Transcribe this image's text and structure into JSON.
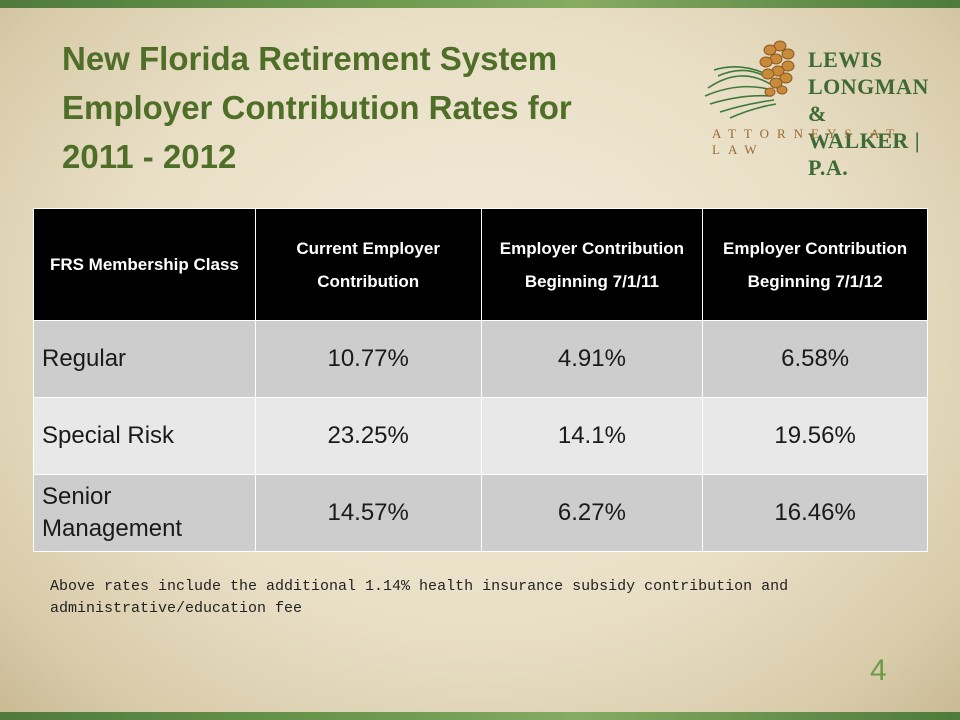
{
  "slide": {
    "title": "New Florida Retirement System Employer Contribution Rates for 2011 - 2012",
    "page_number": "4"
  },
  "logo": {
    "lines": [
      "LEWIS",
      "LONGMAN &",
      "WALKER | P.A."
    ],
    "tagline": "ATTORNEYS AT LAW",
    "colors": {
      "text": "#3d6a35",
      "tagline": "#9b6b2e",
      "cone": "#c98a3a"
    }
  },
  "table": {
    "headers": [
      "FRS Membership Class",
      "Current Employer Contribution",
      "Employer Contribution Beginning 7/1/11",
      "Employer Contribution Beginning 7/1/12"
    ],
    "rows": [
      [
        "Regular",
        "10.77%",
        "4.91%",
        "6.58%"
      ],
      [
        "Special Risk",
        "23.25%",
        "14.1%",
        "19.56%"
      ],
      [
        "Senior Management",
        "14.57%",
        "6.27%",
        "16.46%"
      ]
    ]
  },
  "note": "Above rates include the additional 1.14% health insurance subsidy contribution and administrative/education fee",
  "colors": {
    "title": "#4f6e28",
    "frame": "#6d9a4f",
    "header_bg": "#000000"
  }
}
